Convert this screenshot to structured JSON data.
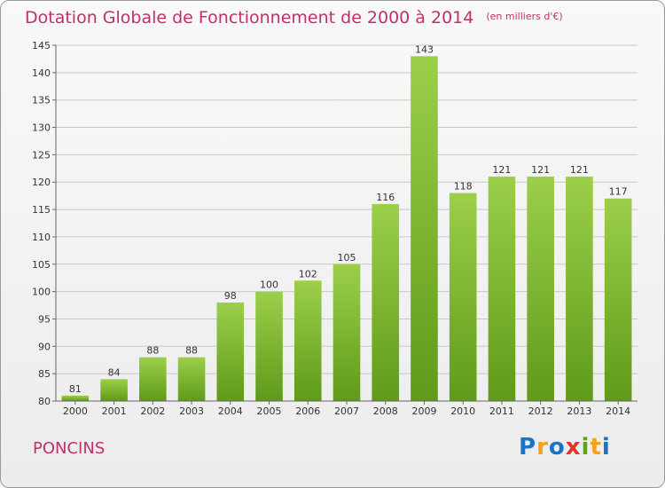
{
  "title": "Dotation Globale de Fonctionnement de 2000 à 2014",
  "unit_note": "(en milliers d'€)",
  "commune": "PONCINS",
  "logo": {
    "text": "Proxiti",
    "letters": [
      {
        "ch": "P",
        "color": "#1a73c8"
      },
      {
        "ch": "r",
        "color": "#f5a11a"
      },
      {
        "ch": "o",
        "color": "#1a73c8"
      },
      {
        "ch": "x",
        "color": "#e0352b"
      },
      {
        "ch": "i",
        "color": "#5aa51e"
      },
      {
        "ch": "t",
        "color": "#f5a11a"
      },
      {
        "ch": "i",
        "color": "#1a73c8"
      }
    ]
  },
  "chart_data": {
    "type": "bar",
    "title": "Dotation Globale de Fonctionnement de 2000 à 2014",
    "categories": [
      "2000",
      "2001",
      "2002",
      "2003",
      "2004",
      "2005",
      "2006",
      "2007",
      "2008",
      "2009",
      "2010",
      "2011",
      "2012",
      "2013",
      "2014"
    ],
    "values": [
      81,
      84,
      88,
      88,
      98,
      100,
      102,
      105,
      116,
      143,
      118,
      121,
      121,
      121,
      117
    ],
    "ylim": [
      80,
      145
    ],
    "yticks": [
      80,
      85,
      90,
      95,
      100,
      105,
      110,
      115,
      120,
      125,
      130,
      135,
      140,
      145
    ],
    "grid": true,
    "bar_color_top": "#9ccf4a",
    "bar_color_bottom": "#5f9a1a",
    "grid_color": "#c8c8c8"
  }
}
